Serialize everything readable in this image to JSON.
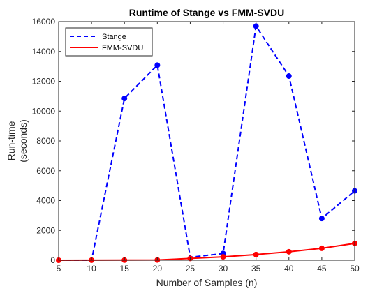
{
  "chart_data": {
    "type": "line",
    "title": "Runtime of Stange vs FMM-SVDU",
    "xlabel": "Number of Samples (n)",
    "ylabel_lines": [
      "Run-time",
      "(seconds)"
    ],
    "xlim": [
      5,
      50
    ],
    "ylim": [
      0,
      16000
    ],
    "x_ticks": [
      5,
      10,
      15,
      20,
      25,
      30,
      35,
      40,
      45,
      50
    ],
    "y_ticks": [
      0,
      2000,
      4000,
      6000,
      8000,
      10000,
      12000,
      14000,
      16000
    ],
    "grid": false,
    "legend_position": "top-left",
    "x": [
      5,
      10,
      15,
      20,
      25,
      30,
      35,
      40,
      45,
      50
    ],
    "series": [
      {
        "name": "Stange",
        "color": "#0000ff",
        "line_style": "dashed",
        "values": [
          0,
          0,
          10850,
          13080,
          200,
          450,
          15700,
          12350,
          2800,
          4650
        ],
        "marker_values": [
          null,
          null,
          10850,
          13080,
          null,
          450,
          15700,
          12350,
          2800,
          4650
        ]
      },
      {
        "name": "FMM-SVDU",
        "color": "#ff0000",
        "line_style": "solid",
        "values": [
          0,
          5,
          10,
          20,
          120,
          230,
          380,
          570,
          800,
          1130
        ],
        "marker_values": [
          0,
          5,
          10,
          20,
          120,
          230,
          380,
          570,
          800,
          1130
        ]
      }
    ]
  }
}
